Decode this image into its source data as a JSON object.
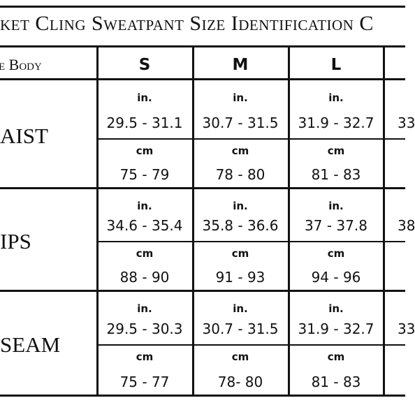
{
  "title": "ket Cling Sweatpant Size Identification C",
  "header": {
    "label": "e Body",
    "sizes": [
      "S",
      "M",
      "L"
    ]
  },
  "units": {
    "in": "in.",
    "cm": "cm"
  },
  "rows": [
    {
      "label": "AIST",
      "cells": [
        {
          "in": "29.5 - 31.1",
          "cm": "75 - 79"
        },
        {
          "in": "30.7 - 31.5",
          "cm": "78 - 80"
        },
        {
          "in": "31.9 - 32.7",
          "cm": "81 - 83"
        }
      ],
      "partial_in": "33"
    },
    {
      "label": "IPS",
      "cells": [
        {
          "in": "34.6 - 35.4",
          "cm": "88 - 90"
        },
        {
          "in": "35.8 - 36.6",
          "cm": "91 - 93"
        },
        {
          "in": "37 - 37.8",
          "cm": "94 - 96"
        }
      ],
      "partial_in": "38"
    },
    {
      "label": "SEAM",
      "cells": [
        {
          "in": "29.5 - 30.3",
          "cm": "75 - 77"
        },
        {
          "in": "30.7 - 31.5",
          "cm": "78- 80"
        },
        {
          "in": "31.9 - 32.7",
          "cm": "81 - 83"
        }
      ],
      "partial_in": "33"
    }
  ]
}
